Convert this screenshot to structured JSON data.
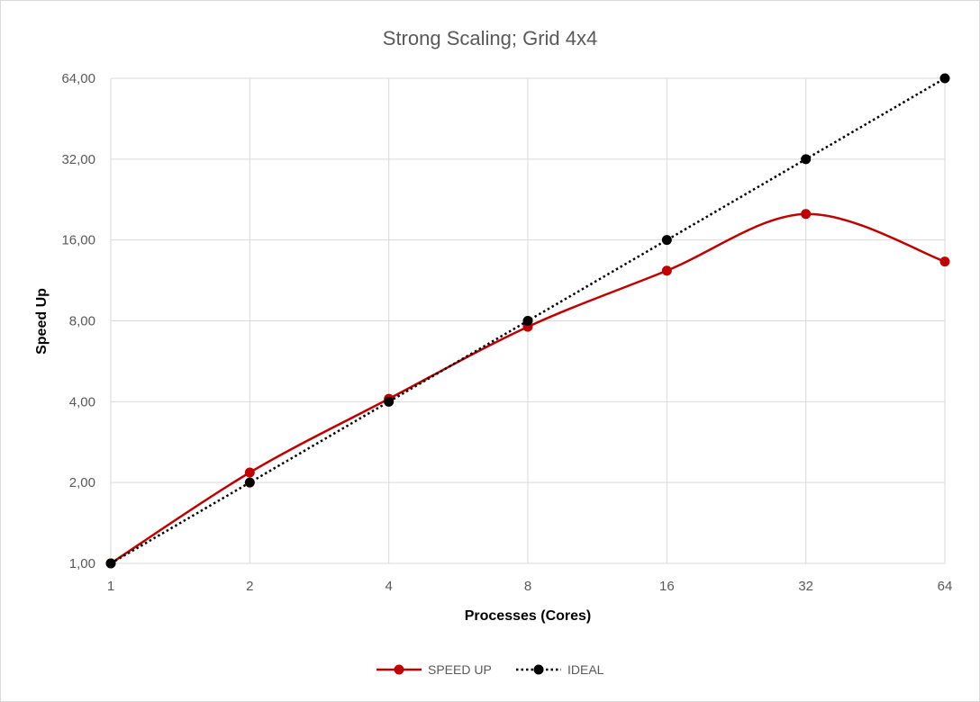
{
  "chart_data": {
    "type": "line",
    "title": "Strong Scaling; Grid 4x4",
    "xlabel": "Processes (Cores)",
    "ylabel": "Speed Up",
    "x_scale": "log2",
    "y_scale": "log2",
    "x": [
      1,
      2,
      4,
      8,
      16,
      32,
      64
    ],
    "x_tick_labels": [
      "1",
      "2",
      "4",
      "8",
      "16",
      "32",
      "64"
    ],
    "y_ticks": [
      1,
      2,
      4,
      8,
      16,
      32,
      64
    ],
    "y_tick_labels": [
      "1,00",
      "2,00",
      "4,00",
      "8,00",
      "16,00",
      "32,00",
      "64,00"
    ],
    "xlim": [
      1,
      64
    ],
    "ylim": [
      1,
      64
    ],
    "grid": true,
    "legend_position": "bottom",
    "series": [
      {
        "name": "SPEED UP",
        "values": [
          1.0,
          2.18,
          4.1,
          7.6,
          12.3,
          20.0,
          13.3
        ],
        "color": "#c00000",
        "style": "solid-smooth"
      },
      {
        "name": "IDEAL",
        "values": [
          1,
          2,
          4,
          8,
          16,
          32,
          64
        ],
        "color": "#000000",
        "style": "dotted"
      }
    ]
  }
}
